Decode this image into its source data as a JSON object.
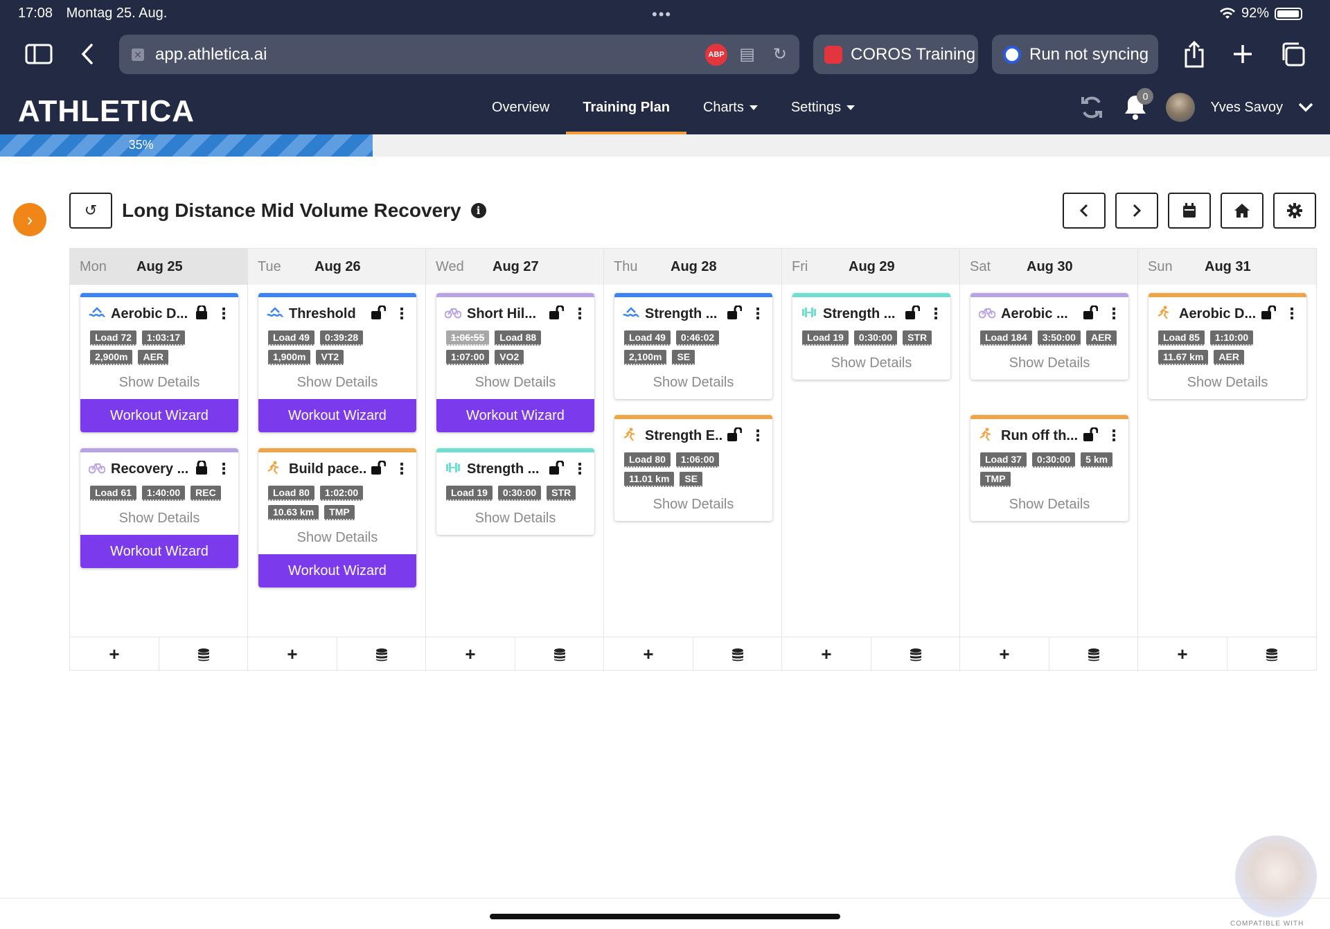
{
  "status": {
    "time": "17:08",
    "date": "Montag 25. Aug.",
    "battery": "92%"
  },
  "browser": {
    "url": "app.athletica.ai",
    "adblock": "ABP",
    "tabs": [
      {
        "label": "COROS Training"
      },
      {
        "label": "Run not syncing"
      }
    ]
  },
  "app": {
    "logo": "ATHLETICA",
    "menu": {
      "overview": "Overview",
      "training_plan": "Training Plan",
      "charts": "Charts",
      "settings": "Settings"
    },
    "notifications": "0",
    "user": "Yves Savoy",
    "progress": {
      "label": "35%",
      "value": 35
    }
  },
  "plan": {
    "title": "Long Distance Mid Volume Recovery"
  },
  "days": [
    {
      "dn": "Mon",
      "dd": "Aug 25",
      "cards": [
        {
          "sport": "swim",
          "title": "Aerobic D...",
          "locked": true,
          "tags": [
            {
              "t": "Load 72"
            },
            {
              "t": "1:03:17"
            },
            {
              "t": "2,900m"
            },
            {
              "t": "AER"
            }
          ],
          "show": "Show Details",
          "wizard": "Workout Wizard"
        },
        {
          "sport": "bike",
          "title": "Recovery ...",
          "locked": true,
          "tags": [
            {
              "t": "Load 61"
            },
            {
              "t": "1:40:00"
            },
            {
              "t": "REC"
            }
          ],
          "show": "Show Details",
          "wizard": "Workout Wizard"
        }
      ]
    },
    {
      "dn": "Tue",
      "dd": "Aug 26",
      "cards": [
        {
          "sport": "swim",
          "title": "Threshold",
          "locked": false,
          "tags": [
            {
              "t": "Load 49"
            },
            {
              "t": "0:39:28"
            },
            {
              "t": "1,900m"
            },
            {
              "t": "VT2"
            }
          ],
          "show": "Show Details",
          "wizard": "Workout Wizard"
        },
        {
          "sport": "run",
          "title": "Build pace...",
          "locked": false,
          "tags": [
            {
              "t": "Load 80"
            },
            {
              "t": "1:02:00"
            },
            {
              "t": "10.63 km"
            },
            {
              "t": "TMP"
            }
          ],
          "show": "Show Details",
          "wizard": "Workout Wizard"
        }
      ]
    },
    {
      "dn": "Wed",
      "dd": "Aug 27",
      "cards": [
        {
          "sport": "bike",
          "title": "Short Hil...",
          "locked": false,
          "tags": [
            {
              "t": "1:06:55",
              "strike": true
            },
            {
              "t": "Load 88"
            },
            {
              "t": "1:07:00"
            },
            {
              "t": "VO2"
            }
          ],
          "show": "Show Details",
          "wizard": "Workout Wizard"
        },
        {
          "sport": "strength",
          "title": "Strength ...",
          "locked": false,
          "tags": [
            {
              "t": "Load 19"
            },
            {
              "t": "0:30:00"
            },
            {
              "t": "STR"
            }
          ],
          "show": "Show Details"
        }
      ]
    },
    {
      "dn": "Thu",
      "dd": "Aug 28",
      "cards": [
        {
          "sport": "swim",
          "title": "Strength ...",
          "locked": false,
          "tags": [
            {
              "t": "Load 49"
            },
            {
              "t": "0:46:02"
            },
            {
              "t": "2,100m"
            },
            {
              "t": "SE"
            }
          ],
          "show": "Show Details"
        },
        {
          "sport": "run",
          "title": "Strength E...",
          "locked": false,
          "tags": [
            {
              "t": "Load 80"
            },
            {
              "t": "1:06:00"
            },
            {
              "t": "11.01 km"
            },
            {
              "t": "SE"
            }
          ],
          "show": "Show Details"
        }
      ]
    },
    {
      "dn": "Fri",
      "dd": "Aug 29",
      "cards": [
        {
          "sport": "strength",
          "title": "Strength ...",
          "locked": false,
          "tags": [
            {
              "t": "Load 19"
            },
            {
              "t": "0:30:00"
            },
            {
              "t": "STR"
            }
          ],
          "show": "Show Details"
        }
      ]
    },
    {
      "dn": "Sat",
      "dd": "Aug 30",
      "cards": [
        {
          "sport": "bike",
          "title": "Aerobic ...",
          "locked": false,
          "tags": [
            {
              "t": "Load 184"
            },
            {
              "t": "3:50:00"
            },
            {
              "t": "AER"
            }
          ],
          "show": "Show Details"
        },
        {
          "sport": "run",
          "title": "Run off th...",
          "locked": false,
          "tags": [
            {
              "t": "Load 37"
            },
            {
              "t": "0:30:00"
            },
            {
              "t": "5 km"
            },
            {
              "t": "TMP"
            }
          ],
          "show": "Show Details"
        }
      ]
    },
    {
      "dn": "Sun",
      "dd": "Aug 31",
      "cards": [
        {
          "sport": "run",
          "title": "Aerobic D...",
          "locked": false,
          "tags": [
            {
              "t": "Load 85"
            },
            {
              "t": "1:10:00"
            },
            {
              "t": "11.67 km"
            },
            {
              "t": "AER"
            }
          ],
          "show": "Show Details"
        }
      ]
    }
  ],
  "sport_colors": {
    "swim": "#3b82f6",
    "bike": "#b9a1e6",
    "run": "#f0a545",
    "strength": "#6ee0d0"
  },
  "footer": {
    "compatible": "COMPATIBLE WITH"
  }
}
